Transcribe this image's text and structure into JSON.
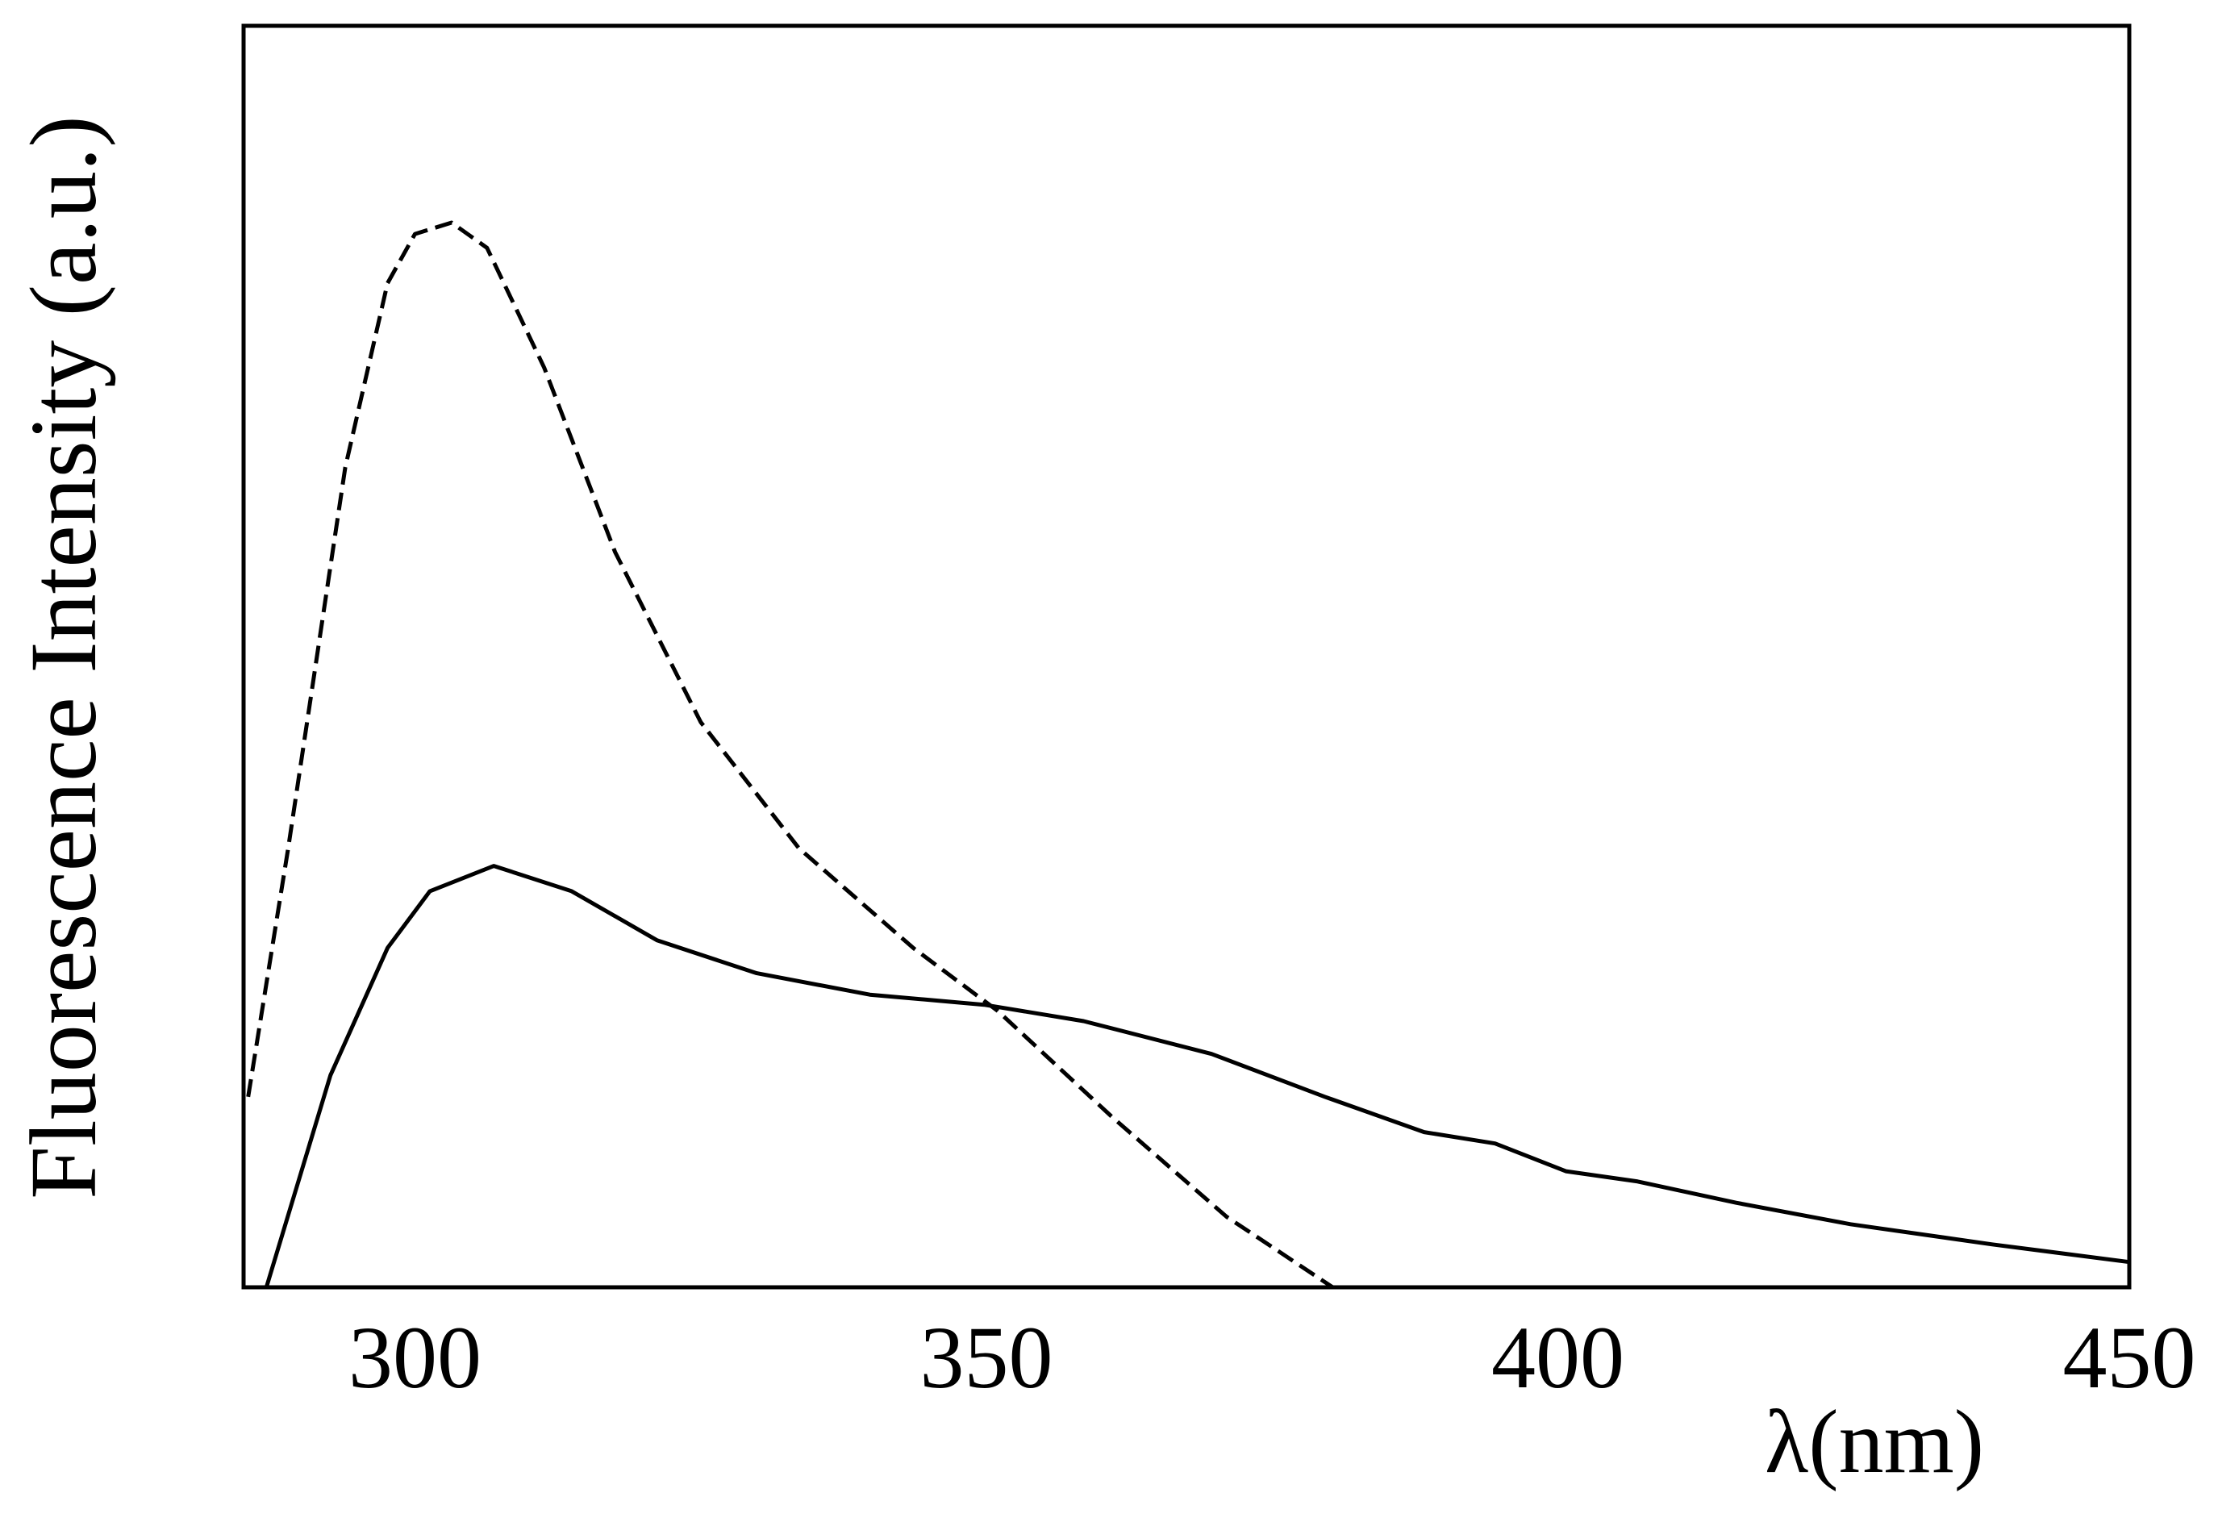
{
  "chart_data": {
    "type": "line",
    "xlabel": "λ(nm)",
    "ylabel": "Fluorescence Intensity (a.u.)",
    "xlim": [
      285,
      450
    ],
    "xticks": [
      300,
      350,
      400,
      450
    ],
    "ylim": [
      0,
      100
    ],
    "series": [
      {
        "color": "#000000",
        "style": "dashed",
        "x": [
          285.4,
          288.9,
          293.9,
          297.6,
          300,
          303.2,
          306.3,
          311.3,
          317.5,
          325,
          333.6,
          343.6,
          351,
          361,
          371,
          380.3
        ],
        "values": [
          15.1,
          34.8,
          65,
          79.6,
          83.5,
          84.4,
          82.4,
          72.9,
          58.3,
          44.8,
          34.8,
          26.9,
          21.9,
          13.5,
          5.6,
          0
        ]
      },
      {
        "color": "#000000",
        "style": "solid",
        "x": [
          287,
          292.6,
          297.6,
          301.3,
          306.9,
          313.7,
          321.2,
          329.9,
          339.8,
          349.8,
          358.5,
          369.7,
          379.6,
          388.3,
          394.5,
          400.7,
          406.9,
          415.6,
          425.6,
          438,
          450
        ],
        "values": [
          0,
          16.8,
          26.9,
          31.4,
          33.4,
          31.4,
          27.5,
          24.9,
          23.2,
          22.4,
          21.1,
          18.5,
          15.1,
          12.3,
          11.4,
          9.2,
          8.4,
          6.7,
          5.0,
          3.4,
          2.0
        ]
      }
    ]
  }
}
